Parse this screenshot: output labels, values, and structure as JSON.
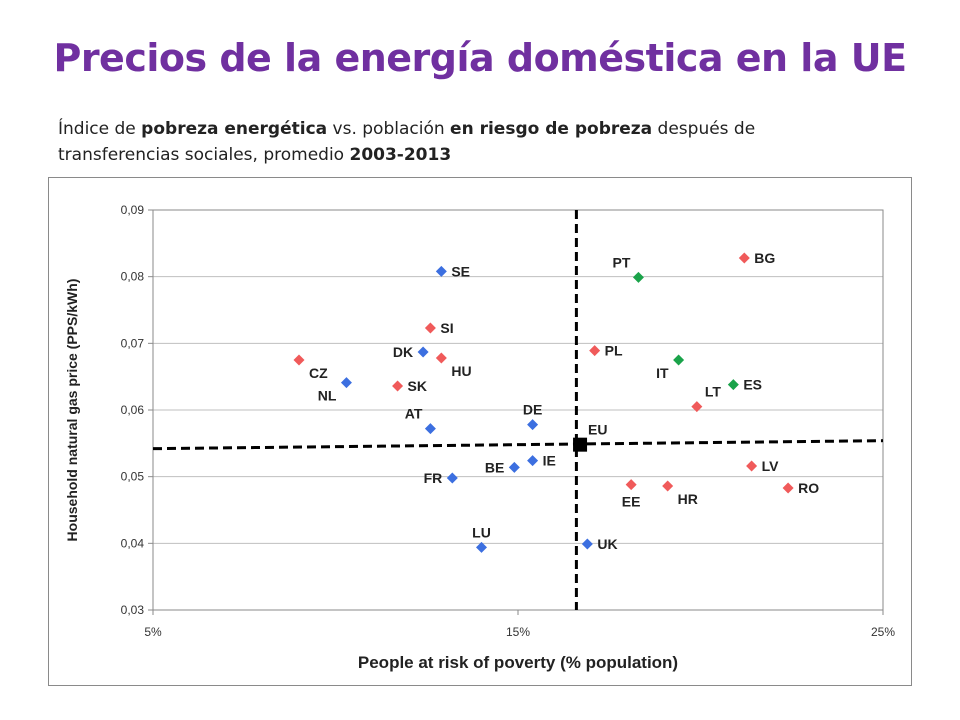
{
  "slide": {
    "title": "Precios de la energía doméstica en la UE",
    "subtitle": {
      "p1": "Índice de ",
      "b1": "pobreza energética",
      "p2": " vs. población ",
      "b2": "en riesgo de pobreza",
      "p3": " después de transferencias sociales, promedio ",
      "b3": "2003-2013"
    }
  },
  "colors": {
    "blue": "#3c6fe0",
    "red": "#f05a5a",
    "green": "#1aa34a",
    "black": "#000000",
    "grid": "#bfbfbf"
  },
  "chart_data": {
    "type": "scatter",
    "title": "",
    "xlabel": "People at risk of poverty  (% population)",
    "ylabel": "Household natural gas price (PPS/kWh)",
    "xlim": [
      5,
      25
    ],
    "ylim": [
      0.03,
      0.09
    ],
    "x_ticks": [
      5,
      15,
      25
    ],
    "x_tick_labels": [
      "5%",
      "15%",
      "25%"
    ],
    "y_ticks": [
      0.03,
      0.04,
      0.05,
      0.06,
      0.07,
      0.08,
      0.09
    ],
    "y_tick_labels": [
      "0,03",
      "0,04",
      "0,05",
      "0,06",
      "0,07",
      "0,08",
      "0,09"
    ],
    "grid": "horizontal",
    "reference_lines": {
      "x": 16.6,
      "y": 0.0548
    },
    "points": [
      {
        "label": "SE",
        "x": 12.9,
        "y": 0.0808,
        "color": "blue",
        "label_pos": "right"
      },
      {
        "label": "DK",
        "x": 12.4,
        "y": 0.0687,
        "color": "blue",
        "label_pos": "left"
      },
      {
        "label": "NL",
        "x": 10.3,
        "y": 0.0641,
        "color": "blue",
        "label_pos": "lowleft"
      },
      {
        "label": "AT",
        "x": 12.6,
        "y": 0.0572,
        "color": "blue",
        "label_pos": "upleft"
      },
      {
        "label": "DE",
        "x": 15.4,
        "y": 0.0578,
        "color": "blue",
        "label_pos": "above"
      },
      {
        "label": "IE",
        "x": 15.4,
        "y": 0.0524,
        "color": "blue",
        "label_pos": "right"
      },
      {
        "label": "BE",
        "x": 14.9,
        "y": 0.0514,
        "color": "blue",
        "label_pos": "left"
      },
      {
        "label": "FR",
        "x": 13.2,
        "y": 0.0498,
        "color": "blue",
        "label_pos": "left"
      },
      {
        "label": "LU",
        "x": 14.0,
        "y": 0.0394,
        "color": "blue",
        "label_pos": "above"
      },
      {
        "label": "UK",
        "x": 16.9,
        "y": 0.0399,
        "color": "blue",
        "label_pos": "right"
      },
      {
        "label": "SI",
        "x": 12.6,
        "y": 0.0723,
        "color": "red",
        "label_pos": "right"
      },
      {
        "label": "CZ",
        "x": 9.0,
        "y": 0.0675,
        "color": "red",
        "label_pos": "lowright"
      },
      {
        "label": "HU",
        "x": 12.9,
        "y": 0.0678,
        "color": "red",
        "label_pos": "lowright"
      },
      {
        "label": "SK",
        "x": 11.7,
        "y": 0.0636,
        "color": "red",
        "label_pos": "right"
      },
      {
        "label": "PL",
        "x": 17.1,
        "y": 0.0689,
        "color": "red",
        "label_pos": "right"
      },
      {
        "label": "LT",
        "x": 19.9,
        "y": 0.0605,
        "color": "red",
        "label_pos": "upright"
      },
      {
        "label": "LV",
        "x": 21.4,
        "y": 0.0516,
        "color": "red",
        "label_pos": "right"
      },
      {
        "label": "RO",
        "x": 22.4,
        "y": 0.0483,
        "color": "red",
        "label_pos": "right"
      },
      {
        "label": "EE",
        "x": 18.1,
        "y": 0.0488,
        "color": "red",
        "label_pos": "below"
      },
      {
        "label": "HR",
        "x": 19.1,
        "y": 0.0486,
        "color": "red",
        "label_pos": "lowright"
      },
      {
        "label": "BG",
        "x": 21.2,
        "y": 0.0828,
        "color": "red",
        "label_pos": "right"
      },
      {
        "label": "PT",
        "x": 18.3,
        "y": 0.0799,
        "color": "green",
        "label_pos": "upleft"
      },
      {
        "label": "IT",
        "x": 19.4,
        "y": 0.0675,
        "color": "green",
        "label_pos": "lowleft"
      },
      {
        "label": "ES",
        "x": 20.9,
        "y": 0.0638,
        "color": "green",
        "label_pos": "right"
      },
      {
        "label": "EU",
        "x": 16.7,
        "y": 0.0548,
        "color": "black",
        "label_pos": "upright",
        "marker": "square"
      }
    ]
  }
}
